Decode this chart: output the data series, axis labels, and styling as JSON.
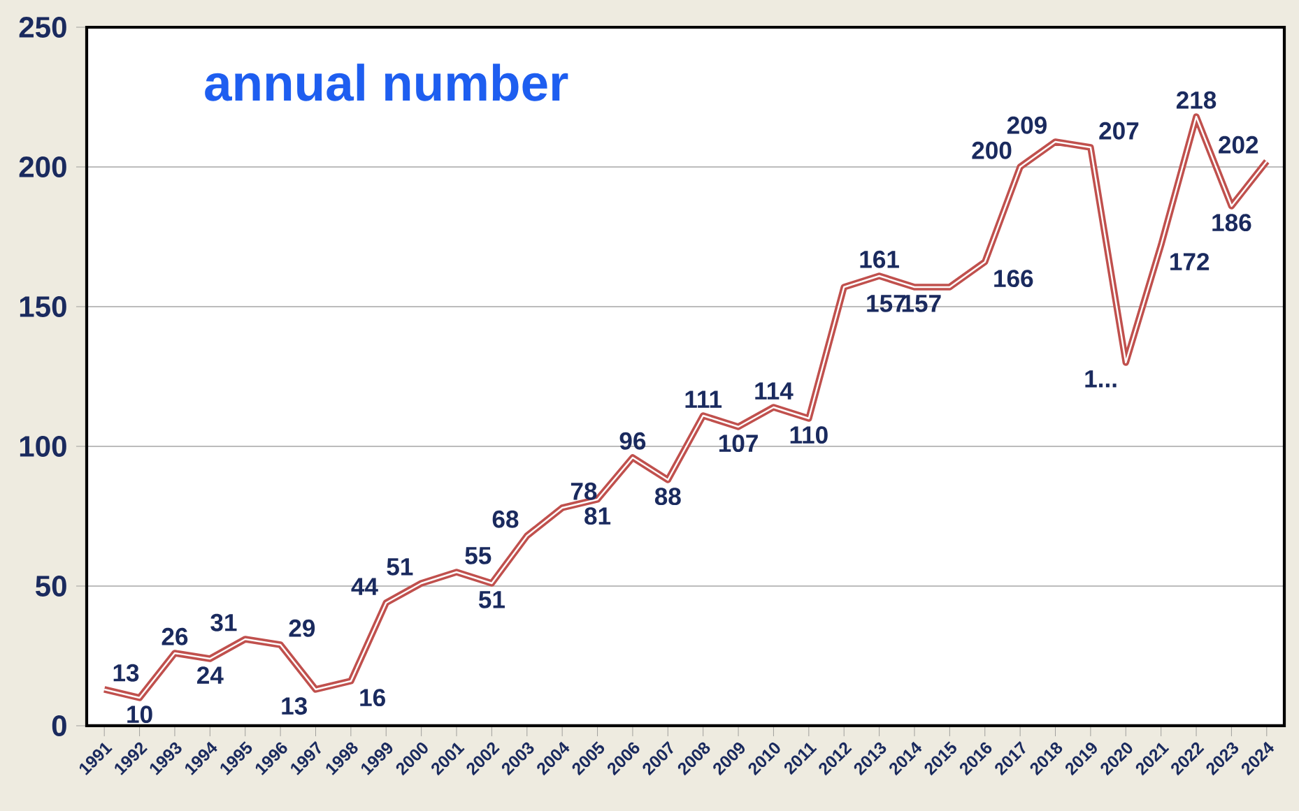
{
  "chart_data": {
    "type": "line",
    "title": "annual number",
    "categories": [
      "1991",
      "1992",
      "1993",
      "1994",
      "1995",
      "1996",
      "1997",
      "1998",
      "1999",
      "2000",
      "2001",
      "2002",
      "2003",
      "2004",
      "2005",
      "2006",
      "2007",
      "2008",
      "2009",
      "2010",
      "2011",
      "2012",
      "2013",
      "2014",
      "2015",
      "2016",
      "2017",
      "2018",
      "2019",
      "2020",
      "2021",
      "2022",
      "2023",
      "2024"
    ],
    "values": [
      13,
      10,
      26,
      24,
      31,
      29,
      13,
      16,
      44,
      51,
      55,
      51,
      68,
      78,
      81,
      96,
      88,
      111,
      107,
      114,
      110,
      157,
      161,
      157,
      157,
      166,
      200,
      209,
      207,
      130,
      172,
      218,
      186,
      202
    ],
    "value_labels": [
      "13",
      "10",
      "26",
      "24",
      "31",
      "29",
      "13",
      "16",
      "44",
      "51",
      "55",
      "51",
      "68",
      "78",
      "81",
      "96",
      "88",
      "111",
      "107",
      "114",
      "110",
      null,
      "161",
      "157",
      "157",
      "166",
      "200",
      "209",
      "207",
      "1...",
      "172",
      "218",
      "186",
      "202"
    ],
    "color": "#c0504d",
    "ylim": [
      0,
      250
    ],
    "yticks": [
      0,
      50,
      100,
      150,
      200,
      250
    ],
    "grid": "y",
    "marker": "none",
    "line_style": "solid"
  }
}
